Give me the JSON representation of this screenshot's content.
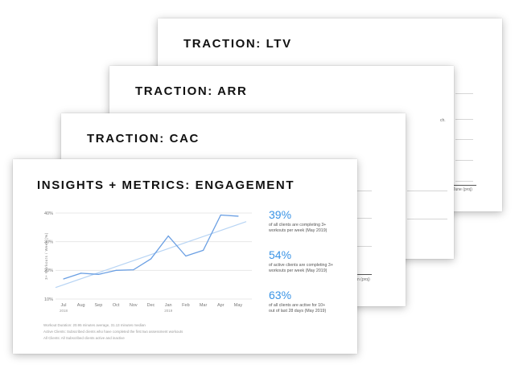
{
  "slides": {
    "ltv": {
      "title": "TRACTION: LTV",
      "peek_label": "June (proj)"
    },
    "arr": {
      "title": "TRACTION: ARR",
      "peek_text": "ch."
    },
    "cac": {
      "title": "TRACTION: CAC",
      "peek_label": "n (proj)"
    },
    "engagement": {
      "title": "INSIGHTS + METRICS: ENGAGEMENT",
      "stats": [
        {
          "value": "39%",
          "desc_line1": "of all clients are completing 3+",
          "desc_line2": "workouts per week (May 2019)"
        },
        {
          "value": "54%",
          "desc_line1": "of active clients are completing 3+",
          "desc_line2": "workouts per week (May 2019)"
        },
        {
          "value": "63%",
          "desc_line1": "of all clients are active for 10+",
          "desc_line2": "out of last 28 days (May 2019)"
        }
      ],
      "footnotes": [
        "Workout Duration: 20.95 minutes average, 31.13 minutes median",
        "Active Clients: Subscribed clients who have completed the first two assessment workouts",
        "All Clients: All Subscribed clients active and inactive"
      ]
    }
  },
  "colors": {
    "series_line": "#6a9fe3",
    "trend_line": "#b7d4f4",
    "accent": "#3a94e6",
    "grid": "#e3e3e3"
  },
  "chart_data": {
    "type": "line",
    "ylabel": "3+ Workouts / Week (%)",
    "xlabel": "",
    "categories": [
      "Jul",
      "Aug",
      "Sep",
      "Oct",
      "Nov",
      "Dec",
      "Jan",
      "Feb",
      "Mar",
      "Apr",
      "May"
    ],
    "year_labels": [
      {
        "category": "Jul",
        "label": "2018"
      },
      {
        "category": "Jan",
        "label": "2019"
      }
    ],
    "yticks": [
      "10%",
      "20%",
      "30%",
      "40%"
    ],
    "ylim": [
      10,
      40
    ],
    "grid": true,
    "series": [
      {
        "values": [
          17,
          19,
          18.6,
          20,
          20.2,
          24,
          32,
          25,
          27,
          39.3,
          38.9
        ]
      },
      {
        "trend": true,
        "start": 14,
        "end": 37
      }
    ]
  }
}
